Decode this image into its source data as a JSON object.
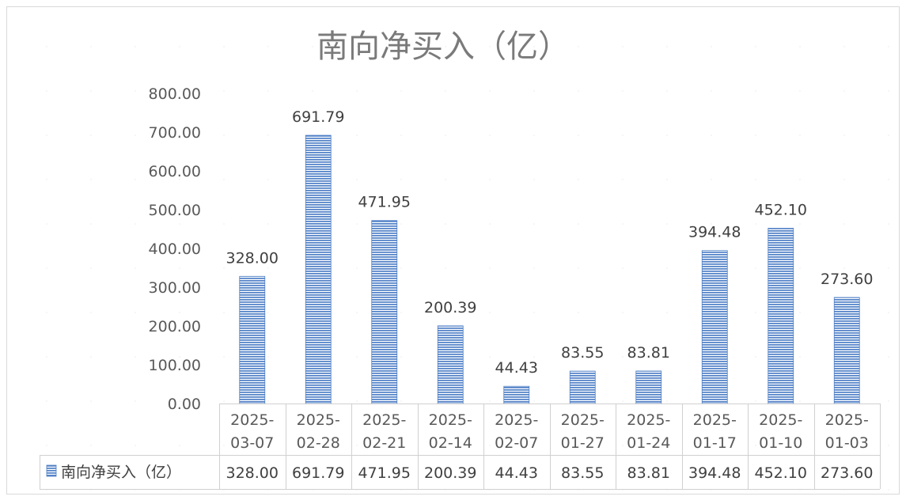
{
  "chart_data": {
    "type": "bar",
    "title": "南向净买入（亿）",
    "categories": [
      [
        "2025-",
        "03-07"
      ],
      [
        "2025-",
        "02-28"
      ],
      [
        "2025-",
        "02-21"
      ],
      [
        "2025-",
        "02-14"
      ],
      [
        "2025-",
        "02-07"
      ],
      [
        "2025-",
        "01-27"
      ],
      [
        "2025-",
        "01-24"
      ],
      [
        "2025-",
        "01-17"
      ],
      [
        "2025-",
        "01-10"
      ],
      [
        "2025-",
        "01-03"
      ]
    ],
    "series": [
      {
        "name": "南向净买入（亿）",
        "values": [
          328.0,
          691.79,
          471.95,
          200.39,
          44.43,
          83.55,
          83.81,
          394.48,
          452.1,
          273.6
        ],
        "labels": [
          "328.00",
          "691.79",
          "471.95",
          "200.39",
          "44.43",
          "83.55",
          "83.81",
          "394.48",
          "452.10",
          "273.60"
        ],
        "color": "#4F7FC6"
      }
    ],
    "y_ticks": [
      "0.00",
      "100.00",
      "200.00",
      "300.00",
      "400.00",
      "500.00",
      "600.00",
      "700.00",
      "800.00"
    ],
    "ylim": [
      0,
      800
    ],
    "xlabel": "",
    "ylabel": "",
    "data_table": true,
    "legend_position": "data-table-left",
    "grid": false
  }
}
